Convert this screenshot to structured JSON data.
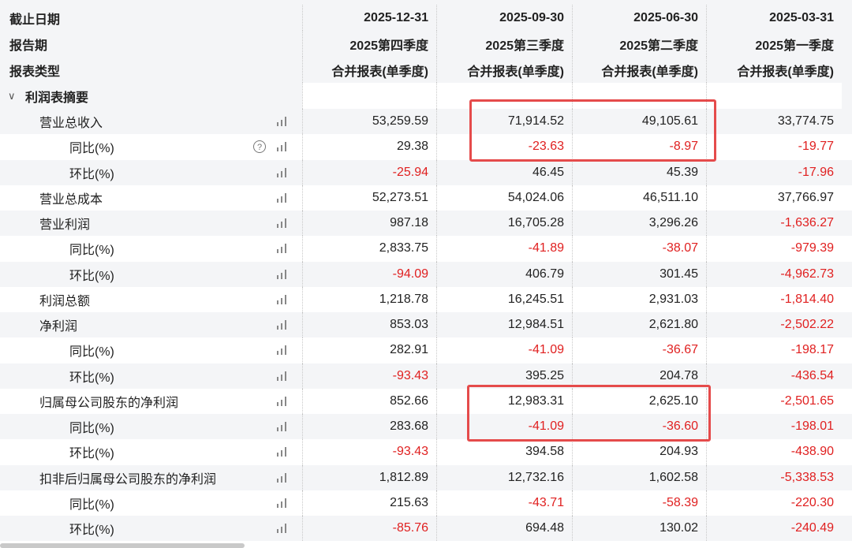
{
  "header": {
    "rows": [
      [
        "截止日期",
        "2025-12-31",
        "2025-09-30",
        "2025-06-30",
        "2025-03-31"
      ],
      [
        "报告期",
        "2025第四季度",
        "2025第三季度",
        "2025第二季度",
        "2025第一季度"
      ],
      [
        "报表类型",
        "合并报表(单季度)",
        "合并报表(单季度)",
        "合并报表(单季度)",
        "合并报表(单季度)"
      ]
    ]
  },
  "section": {
    "label": "利润表摘要"
  },
  "table": {
    "rows": [
      {
        "label": "营业总收入",
        "values": [
          "53,259.59",
          "71,914.52",
          "49,105.61",
          "33,774.75"
        ],
        "children": [
          {
            "label": "同比(%)",
            "values": [
              "29.38",
              "-23.63",
              "-8.97",
              "-19.77"
            ]
          },
          {
            "label": "环比(%)",
            "values": [
              "-25.94",
              "46.45",
              "45.39",
              "-17.96"
            ]
          }
        ]
      },
      {
        "label": "营业总成本",
        "values": [
          "52,273.51",
          "54,024.06",
          "46,511.10",
          "37,766.97"
        ],
        "children": []
      },
      {
        "label": "营业利润",
        "values": [
          "987.18",
          "16,705.28",
          "3,296.26",
          "-1,636.27"
        ],
        "children": [
          {
            "label": "同比(%)",
            "values": [
              "2,833.75",
              "-41.89",
              "-38.07",
              "-979.39"
            ]
          },
          {
            "label": "环比(%)",
            "values": [
              "-94.09",
              "406.79",
              "301.45",
              "-4,962.73"
            ]
          }
        ]
      },
      {
        "label": "利润总额",
        "values": [
          "1,218.78",
          "16,245.51",
          "2,931.03",
          "-1,814.40"
        ],
        "children": []
      },
      {
        "label": "净利润",
        "values": [
          "853.03",
          "12,984.51",
          "2,621.80",
          "-2,502.22"
        ],
        "children": [
          {
            "label": "同比(%)",
            "values": [
              "282.91",
              "-41.09",
              "-36.67",
              "-198.17"
            ]
          },
          {
            "label": "环比(%)",
            "values": [
              "-93.43",
              "395.25",
              "204.78",
              "-436.54"
            ]
          }
        ]
      },
      {
        "label": "归属母公司股东的净利润",
        "values": [
          "852.66",
          "12,983.31",
          "2,625.10",
          "-2,501.65"
        ],
        "children": [
          {
            "label": "同比(%)",
            "values": [
              "283.68",
              "-41.09",
              "-36.60",
              "-198.01"
            ]
          },
          {
            "label": "环比(%)",
            "values": [
              "-93.43",
              "394.58",
              "204.93",
              "-438.90"
            ]
          }
        ]
      },
      {
        "label": "扣非后归属母公司股东的净利润",
        "values": [
          "1,812.89",
          "12,732.16",
          "1,602.58",
          "-5,338.53"
        ],
        "children": [
          {
            "label": "同比(%)",
            "values": [
              "215.63",
              "-43.71",
              "-58.39",
              "-220.30"
            ]
          },
          {
            "label": "环比(%)",
            "values": [
              "-85.76",
              "694.48",
              "130.02",
              "-240.49"
            ]
          }
        ]
      }
    ]
  }
}
